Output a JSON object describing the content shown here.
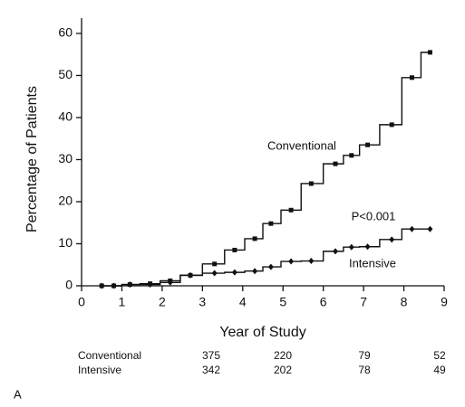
{
  "chart_data": {
    "type": "step",
    "y_label": "Percentage of Patients",
    "x_label": "Year of Study",
    "xlim": [
      0,
      9
    ],
    "xticks": [
      0,
      1,
      2,
      3,
      4,
      5,
      6,
      7,
      8,
      9
    ],
    "ylim": [
      0,
      63
    ],
    "yticks": [
      0,
      10,
      20,
      30,
      40,
      50,
      60
    ],
    "x": [
      0.5,
      0.8,
      1.2,
      1.7,
      2.2,
      2.7,
      3.3,
      3.8,
      4.3,
      4.7,
      5.2,
      5.7,
      6.3,
      6.7,
      7.1,
      7.7,
      8.2,
      8.65
    ],
    "series": [
      {
        "name": "Conventional",
        "color": "#111111",
        "marker": "square",
        "values": [
          0,
          0,
          0.3,
          0.5,
          1.2,
          2.5,
          5.2,
          8.5,
          11.2,
          14.8,
          18,
          24.3,
          29,
          31,
          33.5,
          38.3,
          49.5,
          55.5
        ]
      },
      {
        "name": "Intensive",
        "color": "#111111",
        "marker": "diamond",
        "values": [
          0,
          0,
          0.3,
          0.3,
          0.8,
          2.5,
          3,
          3.2,
          3.5,
          4.5,
          5.8,
          5.9,
          8.2,
          9.2,
          9.3,
          11,
          13.5,
          13.5
        ]
      }
    ],
    "annotations": [
      "Conventional",
      "P<0.001",
      "Intensive"
    ],
    "risk_table": [
      {
        "label": "Conventional",
        "values": [
          375,
          220,
          79,
          52
        ]
      },
      {
        "label": "Intensive",
        "values": [
          342,
          202,
          78,
          49
        ]
      }
    ],
    "panel_label": "A"
  }
}
